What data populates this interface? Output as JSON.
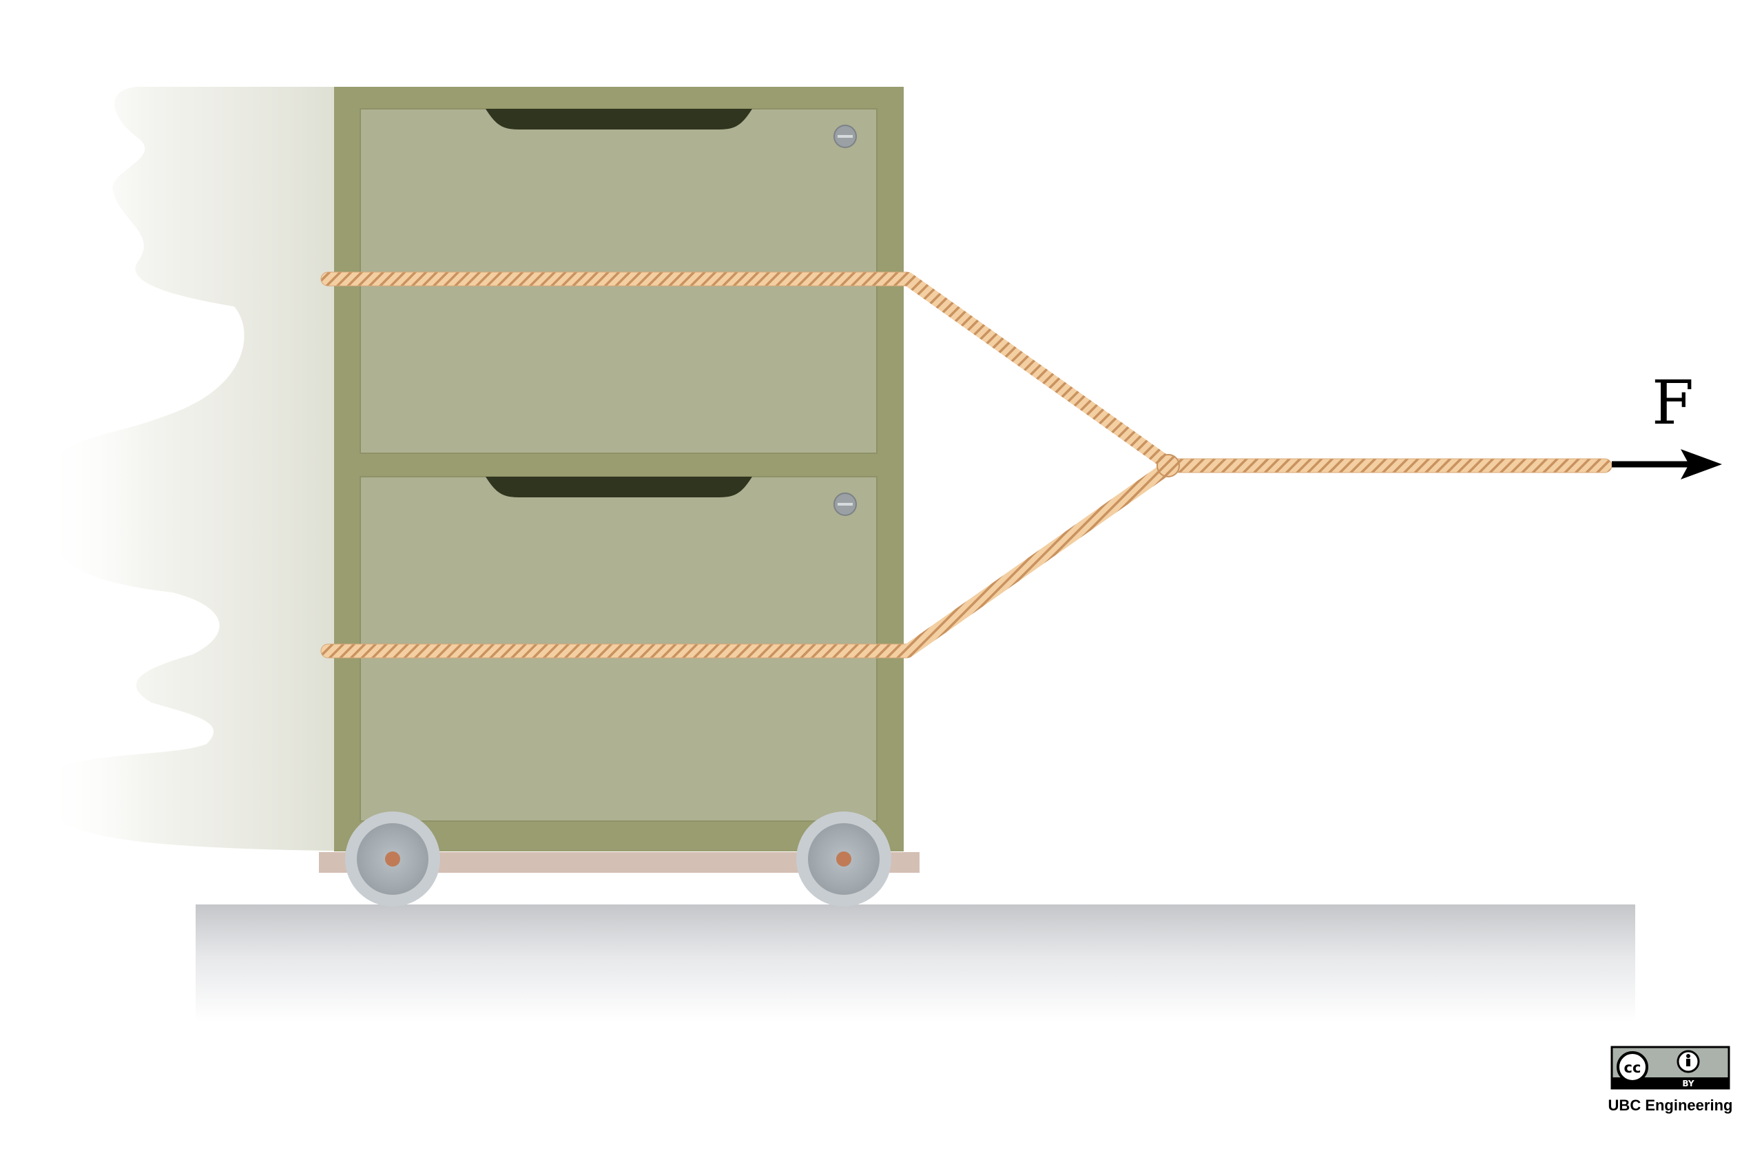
{
  "force": {
    "label": "F"
  },
  "license": {
    "badge_cc": "cc",
    "badge_by": "BY",
    "credit": "UBC Engineering"
  },
  "colors": {
    "cabinet_frame": "#999d6f",
    "drawer_face": "#aeb192",
    "drawer_pull": "#30351f",
    "screw": "#9aa0a3",
    "rope": "#f3cfa2",
    "rope_stripe": "#c9925f",
    "wheel_rim": "#c8cdd1",
    "wheel_hub": "#c07b56",
    "cart_base": "#d3bfb4",
    "floor_top": "#c9cbce",
    "arrow": "#000000"
  }
}
